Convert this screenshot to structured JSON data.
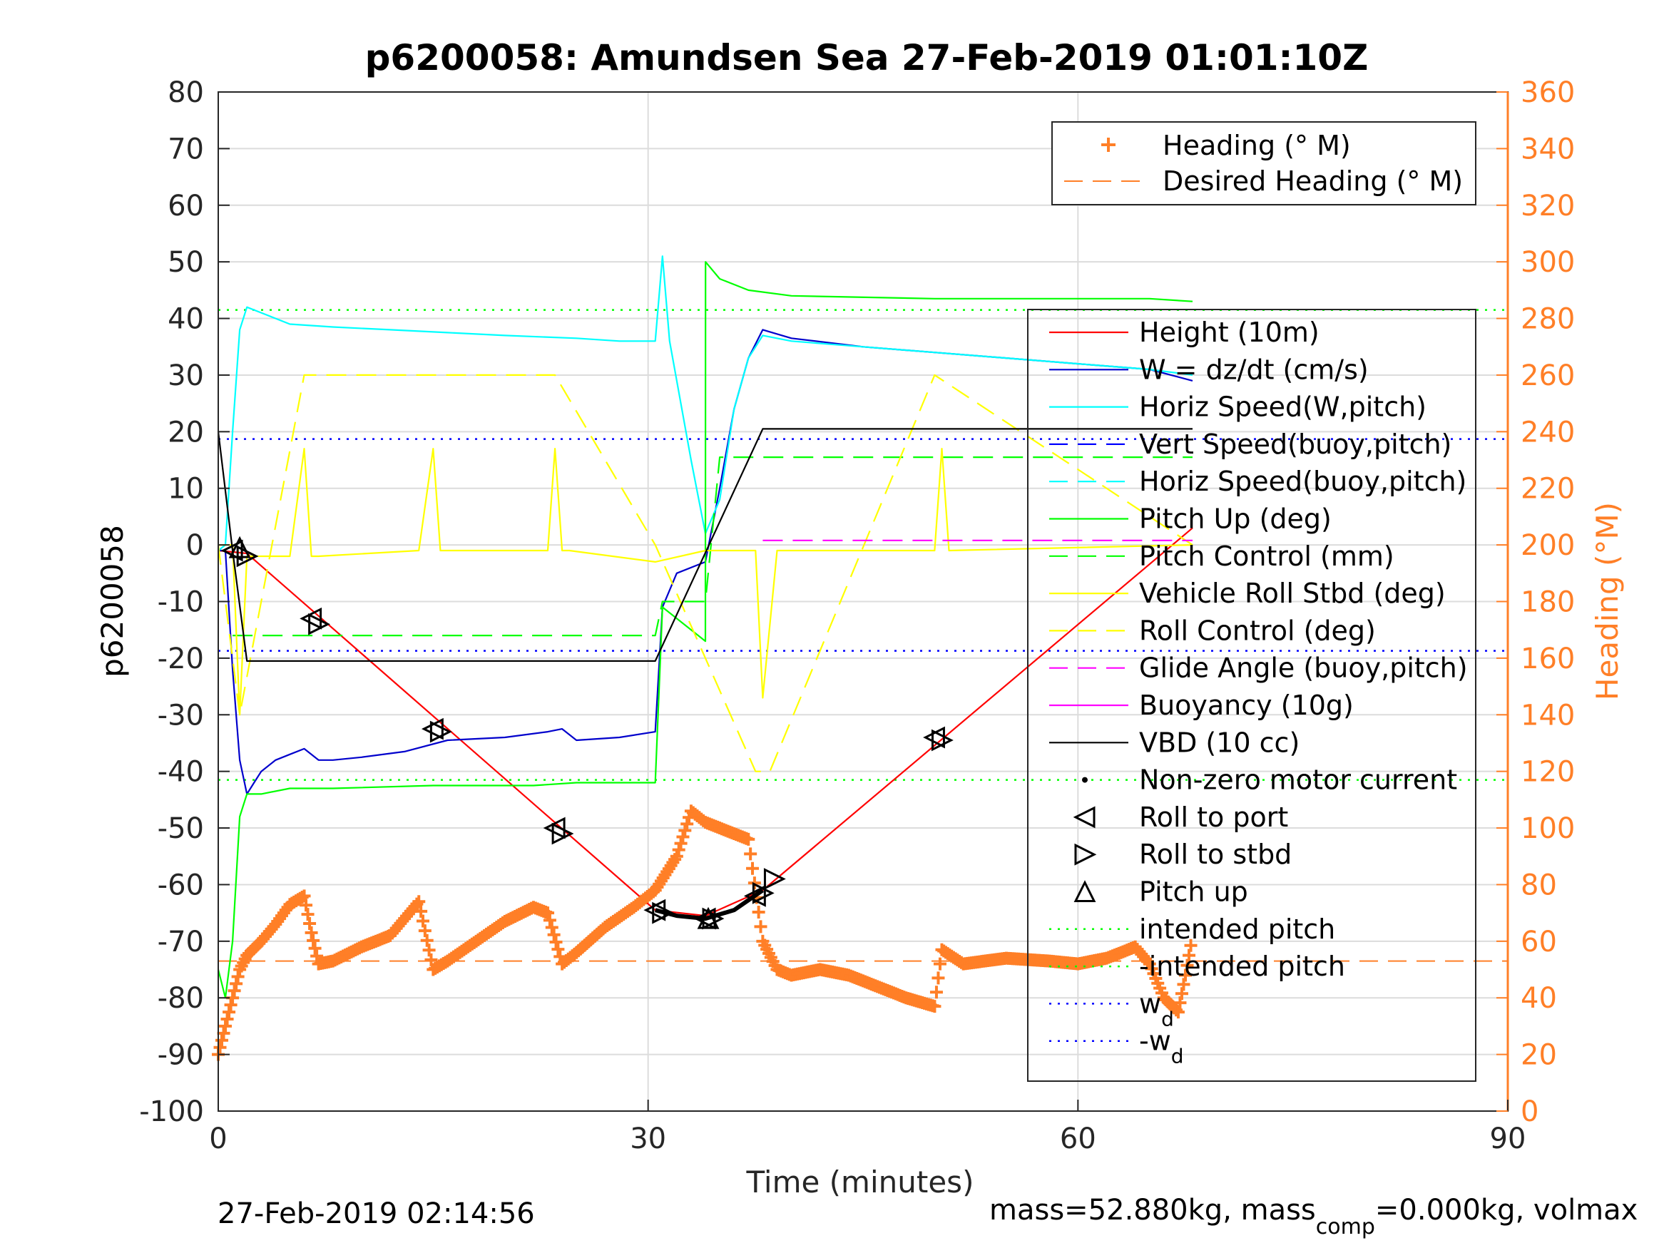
{
  "chart_data": {
    "type": "line",
    "title": "p6200058: Amundsen Sea 27-Feb-2019 01:01:10Z",
    "xlabel": "Time (minutes)",
    "ylabel_left": "p6200058",
    "ylabel_right": "Heading (°M)",
    "xlim": [
      0,
      90
    ],
    "ylim_left": [
      -100,
      80
    ],
    "ylim_right": [
      0,
      360
    ],
    "xticks": [
      "0",
      "30",
      "60",
      "90"
    ],
    "yticks_left": [
      "80",
      "70",
      "60",
      "50",
      "40",
      "30",
      "20",
      "10",
      "0",
      "-10",
      "-20",
      "-30",
      "-40",
      "-50",
      "-60",
      "-70",
      "-80",
      "-90",
      "-100"
    ],
    "yticks_right": [
      "360",
      "340",
      "320",
      "300",
      "280",
      "260",
      "240",
      "220",
      "200",
      "180",
      "160",
      "140",
      "120",
      "100",
      "80",
      "60",
      "40",
      "20",
      "0"
    ],
    "grid": true,
    "footer_left": "27-Feb-2019 02:14:56",
    "footer_right_parts": [
      "mass=52.880kg, mass",
      "comp",
      "=0.000kg, volmax"
    ],
    "legend_right": {
      "placement": "top-right",
      "entries": [
        "Heading (° M)",
        "Desired Heading (° M)"
      ]
    },
    "legend_left": {
      "placement": "right",
      "entries": [
        {
          "label": "Height (10m)",
          "style": "line",
          "color": "#ff0000"
        },
        {
          "label": "W = dz/dt (cm/s)",
          "style": "line",
          "color": "#0000cc"
        },
        {
          "label": "Horiz Speed(W,pitch)",
          "style": "line",
          "color": "#00ffff"
        },
        {
          "label": "Vert Speed(buoy,pitch)",
          "style": "dash",
          "color": "#0000ff"
        },
        {
          "label": "Horiz Speed(buoy,pitch)",
          "style": "dash",
          "color": "#00ffff"
        },
        {
          "label": "Pitch Up (deg)",
          "style": "line",
          "color": "#00ff00"
        },
        {
          "label": "Pitch Control (mm)",
          "style": "dash",
          "color": "#00ff00"
        },
        {
          "label": "Vehicle Roll Stbd (deg)",
          "style": "line",
          "color": "#ffff00"
        },
        {
          "label": "Roll Control (deg)",
          "style": "dash",
          "color": "#ffff00"
        },
        {
          "label": "Glide Angle (buoy,pitch)",
          "style": "dash",
          "color": "#ff00ff"
        },
        {
          "label": "Buoyancy (10g)",
          "style": "line",
          "color": "#ff00ff"
        },
        {
          "label": "VBD (10 cc)",
          "style": "line",
          "color": "#000000"
        },
        {
          "label": "Non-zero motor current",
          "style": "dot",
          "color": "#000000"
        },
        {
          "label": "Roll to port",
          "style": "tri-left",
          "color": "#000000"
        },
        {
          "label": "Roll to stbd",
          "style": "tri-right",
          "color": "#000000"
        },
        {
          "label": "Pitch up",
          "style": "tri-up",
          "color": "#000000"
        },
        {
          "label": "intended pitch",
          "style": "dot-line",
          "color": "#00ff00"
        },
        {
          "label": "-intended pitch",
          "style": "dot-line",
          "color": "#00ff00"
        },
        {
          "label": "w",
          "sub": "d",
          "style": "dot-line",
          "color": "#0000ff"
        },
        {
          "label": "-w",
          "sub": "d",
          "style": "dot-line",
          "color": "#0000ff"
        }
      ]
    },
    "colors": {
      "heading": "#ff7f27",
      "height": "#ff0000",
      "w": "#0000cc",
      "horiz": "#00ffff",
      "pitch": "#00ff00",
      "roll": "#ffff00",
      "glide": "#ff00ff",
      "vbd": "#000000",
      "wd": "#0000ff"
    },
    "reference_lines": {
      "intended_pitch": 41.5,
      "neg_intended_pitch": -41.5,
      "w_d": 18.7,
      "neg_w_d": -18.7,
      "desired_heading_deg": 53
    },
    "series": [
      {
        "name": "Height (10m)",
        "axis": "left",
        "color": "#ff0000",
        "x": [
          0,
          2,
          30.5,
          34,
          38,
          68
        ],
        "y": [
          -1,
          -1.5,
          -64.5,
          -65.5,
          -61,
          3
        ]
      },
      {
        "name": "W = dz/dt (cm/s)",
        "axis": "left",
        "color": "#0000cc",
        "x": [
          0,
          0.5,
          1,
          1.5,
          2,
          2.5,
          3,
          4,
          5,
          6,
          7,
          8,
          10,
          13,
          16,
          20,
          23,
          24,
          25,
          28,
          30.5,
          31,
          32,
          34,
          35,
          36,
          37,
          38,
          40,
          45,
          50,
          55,
          60,
          65,
          68
        ],
        "y": [
          -1,
          -1,
          -22,
          -38,
          -44,
          -42,
          -40,
          -38,
          -37,
          -36,
          -38,
          -38,
          -37.5,
          -36.5,
          -34.5,
          -34,
          -33,
          -32.5,
          -34.5,
          -34,
          -33,
          -11,
          -5,
          -3,
          10,
          24,
          33,
          38,
          36.5,
          35,
          34,
          33,
          32,
          31,
          29
        ]
      },
      {
        "name": "Horiz Speed(W,pitch)",
        "axis": "left",
        "color": "#00ffff",
        "x": [
          0,
          0.5,
          1,
          1.5,
          2,
          3,
          5,
          8,
          12,
          16,
          20,
          25,
          28,
          30.5,
          31,
          31.5,
          33,
          34,
          35,
          36,
          37,
          38,
          40,
          45,
          50,
          55,
          60,
          65,
          68
        ],
        "y": [
          -1,
          0,
          20,
          38,
          42,
          41,
          39,
          38.5,
          38,
          37.5,
          37,
          36.5,
          36,
          36,
          51,
          36,
          15,
          2,
          8,
          24,
          33,
          37,
          36,
          35,
          34,
          33,
          32,
          31,
          30
        ]
      },
      {
        "name": "Pitch Up (deg)",
        "axis": "left",
        "color": "#00ff00",
        "x": [
          0,
          0.5,
          1,
          1.5,
          2,
          3,
          5,
          8,
          15,
          22,
          25,
          28,
          30.5,
          31,
          34,
          34.01,
          35,
          37,
          40,
          50,
          60,
          65,
          68
        ],
        "y": [
          -75,
          -80,
          -70,
          -48,
          -44,
          -44,
          -43,
          -43,
          -42.5,
          -42.5,
          -42,
          -42,
          -42,
          -11,
          -17,
          50,
          47,
          45,
          44,
          43.5,
          43.5,
          43.5,
          43
        ]
      },
      {
        "name": "Pitch Control (mm)",
        "axis": "left",
        "color": "#00ff00",
        "dash": true,
        "x": [
          1,
          30.5,
          31,
          34,
          35,
          68
        ],
        "y": [
          -16,
          -16,
          -10,
          -10,
          15.5,
          15.5
        ]
      },
      {
        "name": "Vehicle Roll Stbd (deg)",
        "axis": "left",
        "color": "#ffff00",
        "x": [
          0,
          1,
          1.5,
          2,
          5,
          6,
          6.5,
          7,
          14,
          15,
          15.5,
          16,
          23,
          23.5,
          24,
          24.5,
          30.5,
          34,
          37.5,
          38,
          39,
          50,
          50.5,
          51,
          68
        ],
        "y": [
          0,
          0,
          -30,
          -2,
          -2,
          17,
          -2,
          -2,
          -1,
          17,
          -1,
          -1,
          -1,
          17,
          -1,
          -1,
          -3,
          -1,
          -1,
          -27,
          -1,
          -1,
          17,
          -1,
          0
        ]
      },
      {
        "name": "Roll Control (deg)",
        "axis": "left",
        "color": "#ffff00",
        "dash": true,
        "x": [
          0,
          1.5,
          6,
          15,
          23.5,
          30.5,
          37.5,
          38.5,
          50,
          68
        ],
        "y": [
          0,
          -30,
          30,
          30,
          30,
          0,
          -40,
          -40,
          30,
          0
        ]
      },
      {
        "name": "Glide Angle (buoy,pitch)",
        "axis": "left",
        "color": "#ff00ff",
        "dash": true,
        "x": [
          38,
          68
        ],
        "y": [
          0.8,
          0.8
        ]
      },
      {
        "name": "VBD (10 cc)",
        "axis": "left",
        "color": "#000000",
        "x": [
          0,
          1,
          2,
          30.5,
          38,
          68
        ],
        "y": [
          20,
          -1,
          -20.5,
          -20.5,
          20.5,
          20.5
        ]
      },
      {
        "name": "Heading (° M)",
        "axis": "right",
        "color": "#ff7f27",
        "marker": "plus",
        "x": [
          0,
          0.5,
          1,
          1.5,
          2,
          3,
          4,
          5,
          6,
          6.5,
          7,
          8,
          10,
          12,
          14,
          15,
          16,
          18,
          20,
          22,
          23,
          24,
          25,
          27,
          29,
          30.5,
          32,
          33,
          34,
          35,
          36,
          37,
          38,
          39,
          40,
          42,
          44,
          46,
          48,
          50,
          50.5,
          52,
          55,
          58,
          60,
          62,
          64,
          65,
          66,
          67,
          67.5,
          68
        ],
        "y": [
          20,
          30,
          40,
          50,
          55,
          60,
          66,
          73,
          76,
          63,
          52,
          53,
          58,
          62,
          74,
          50,
          53,
          60,
          67,
          72,
          70,
          52,
          56,
          65,
          72,
          78,
          90,
          106,
          102,
          100,
          98,
          96,
          60,
          50,
          48,
          50,
          48,
          44,
          40,
          37,
          57,
          52,
          54,
          53,
          52,
          54,
          58,
          52,
          40,
          35,
          48,
          62
        ]
      }
    ],
    "markers": {
      "roll_to_port": {
        "x": [
          1,
          6.5,
          15,
          23.5,
          30.5,
          34,
          37.5,
          50
        ],
        "y": [
          -1,
          -13,
          -32.5,
          -50,
          -64.5,
          -66,
          -62,
          -34
        ]
      },
      "roll_to_stbd": {
        "x": [
          2,
          7,
          15.5,
          24,
          31,
          34.5,
          38,
          38.8,
          50.5
        ],
        "y": [
          -2,
          -14,
          -33,
          -51,
          -65,
          -66,
          -61.5,
          -59,
          -34.5
        ]
      },
      "pitch_up": {
        "x": [
          1.5,
          34.2
        ],
        "y": [
          -0.5,
          -66
        ]
      },
      "motor_current_curve": {
        "x": [
          30.5,
          32,
          34,
          36,
          38
        ],
        "y": [
          -64.5,
          -65.5,
          -66,
          -64.5,
          -61
        ]
      }
    }
  }
}
